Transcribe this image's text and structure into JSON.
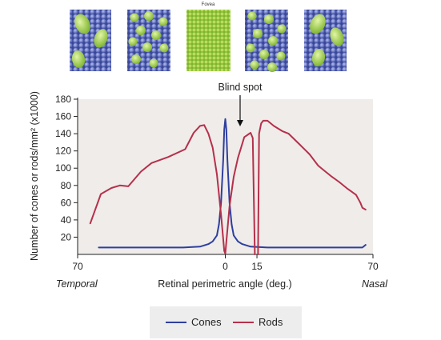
{
  "mosaic": {
    "fovea_label": "Fovea",
    "panels": [
      "periphery",
      "parafovea",
      "fovea",
      "parafovea",
      "periphery"
    ]
  },
  "colors": {
    "cones": "#2e3f9e",
    "rods": "#b5304a",
    "plot_bg": "#efecea",
    "mosaic_rod": "#5d6cc4",
    "mosaic_cone": "#9ccf3f",
    "mosaic_fovea": "#8fc23a"
  },
  "chart_data": {
    "type": "line",
    "ylabel": "Number of cones or rods/mm² (x1000)",
    "xlabel": "Retinal perimetric angle (deg.)",
    "xlim": [
      -70,
      70
    ],
    "ylim": [
      0,
      180
    ],
    "yticks": [
      20,
      40,
      60,
      80,
      100,
      120,
      140,
      160,
      180
    ],
    "xticks": [
      {
        "value": -70,
        "label": "70"
      },
      {
        "value": 0,
        "label": "0"
      },
      {
        "value": 15,
        "label": "15"
      },
      {
        "value": 70,
        "label": "70"
      }
    ],
    "side_labels": {
      "left": "Temporal",
      "right": "Nasal"
    },
    "annotation": {
      "text": "Blind spot",
      "x": 15,
      "y": 157
    },
    "legend": {
      "position": "bottom-center"
    },
    "series": [
      {
        "name": "Cones",
        "color": "#2e3f9e",
        "points": [
          [
            -60,
            8
          ],
          [
            -40,
            8
          ],
          [
            -20,
            8
          ],
          [
            -12,
            9
          ],
          [
            -8,
            12
          ],
          [
            -6,
            15
          ],
          [
            -4,
            22
          ],
          [
            -3,
            35
          ],
          [
            -2,
            60
          ],
          [
            -1,
            110
          ],
          [
            -0.5,
            145
          ],
          [
            0,
            157
          ],
          [
            0.5,
            145
          ],
          [
            1,
            110
          ],
          [
            2,
            60
          ],
          [
            3,
            35
          ],
          [
            4,
            22
          ],
          [
            6,
            15
          ],
          [
            8,
            12
          ],
          [
            12,
            9
          ],
          [
            20,
            8
          ],
          [
            40,
            8
          ],
          [
            60,
            8
          ],
          [
            65,
            8
          ],
          [
            66.5,
            11
          ]
        ]
      },
      {
        "name": "Rods",
        "color": "#b5304a",
        "segments": [
          [
            [
              -64,
              36
            ],
            [
              -59,
              70
            ],
            [
              -54,
              77
            ],
            [
              -50,
              80
            ],
            [
              -46,
              79
            ],
            [
              -40,
              96
            ],
            [
              -35,
              106
            ],
            [
              -27,
              113
            ],
            [
              -19,
              122
            ],
            [
              -15,
              141
            ],
            [
              -12,
              149
            ],
            [
              -10,
              150
            ],
            [
              -8,
              140
            ],
            [
              -6,
              124
            ],
            [
              -4,
              93
            ],
            [
              -2,
              46
            ],
            [
              -0.5,
              4
            ],
            [
              0,
              1
            ]
          ],
          [
            [
              0,
              1
            ],
            [
              1,
              28
            ],
            [
              2,
              56
            ],
            [
              4,
              90
            ],
            [
              6,
              112
            ],
            [
              9,
              136
            ],
            [
              12,
              141
            ],
            [
              13,
              135
            ],
            [
              14,
              0
            ]
          ],
          [
            [
              15.5,
              0
            ],
            [
              16,
              140
            ],
            [
              17,
              152
            ],
            [
              18,
              155
            ],
            [
              20,
              155
            ],
            [
              23,
              149
            ],
            [
              27,
              143
            ],
            [
              30,
              140
            ],
            [
              35,
              128
            ],
            [
              40,
              116
            ],
            [
              44,
              103
            ],
            [
              47,
              97
            ],
            [
              50,
              91
            ],
            [
              54,
              84
            ],
            [
              58,
              76
            ],
            [
              62,
              69
            ],
            [
              64,
              60
            ],
            [
              65,
              54
            ],
            [
              66.5,
              52
            ]
          ]
        ]
      }
    ]
  }
}
